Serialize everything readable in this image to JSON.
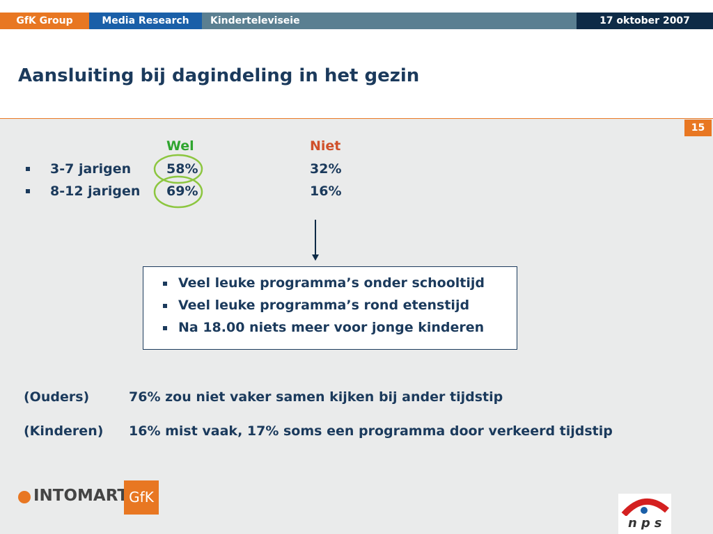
{
  "header": {
    "tabs": [
      "GfK Group",
      "Media Research",
      "Kinderteleviseie"
    ],
    "date": "17 oktober 2007"
  },
  "title": "Aansluiting bij dagindeling in het gezin",
  "page_number": "15",
  "table": {
    "columns": [
      "Wel",
      "Niet"
    ],
    "rows": [
      [
        "3-7 jarigen",
        "58%",
        "32%"
      ],
      [
        "8-12 jarigen",
        "69%",
        "16%"
      ]
    ]
  },
  "box": {
    "items": [
      "Veel leuke programma’s onder schooltijd",
      "Veel leuke programma’s rond etenstijd",
      "Na 18.00 niets meer voor jonge kinderen"
    ]
  },
  "statements": [
    [
      "(Ouders)",
      "76% zou niet vaker samen kijken bij ander tijdstip"
    ],
    [
      "(Kinderen)",
      "16% mist vaak, 17% soms een programma door verkeerd tijdstip"
    ]
  ],
  "logos": {
    "intomart": "INTOMART",
    "gfk": "GfK",
    "nps": "nps"
  }
}
